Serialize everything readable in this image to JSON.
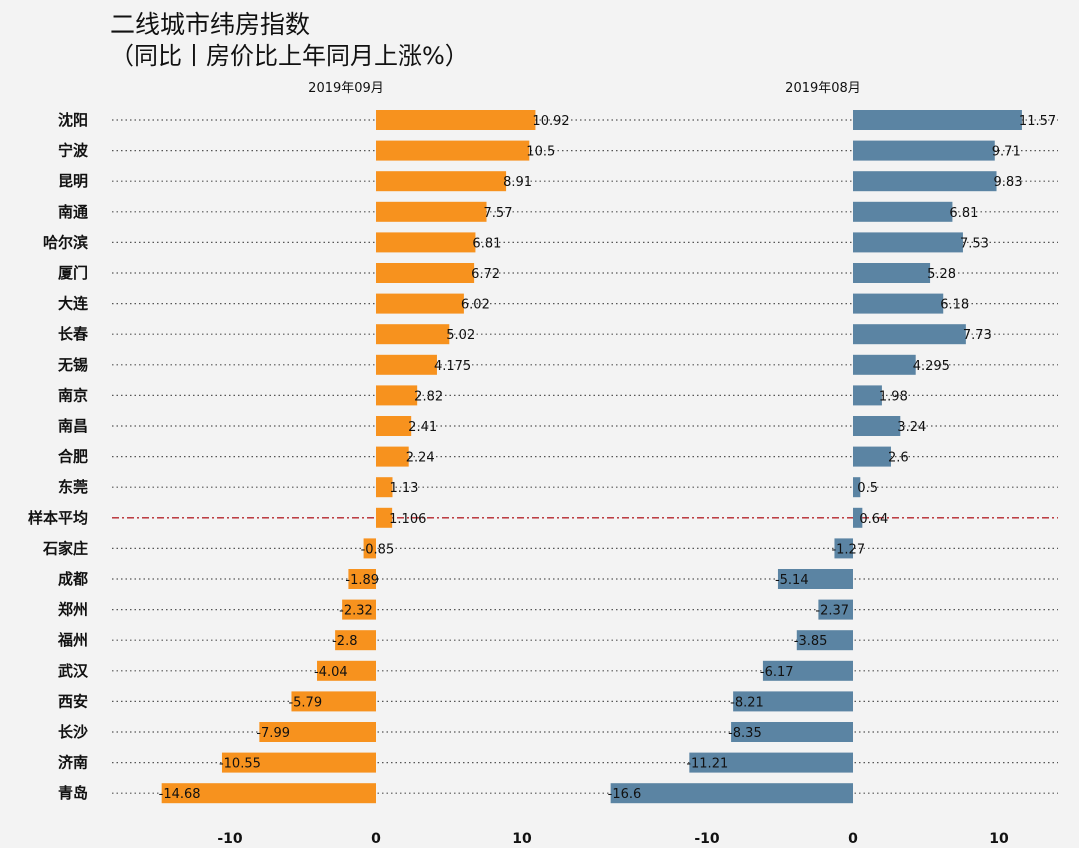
{
  "title": "二线城市纬房指数",
  "subtitle": "（同比丨房价比上年同月上涨%）",
  "colors": {
    "left": "#f7921e",
    "right": "#5b84a3",
    "avg_line": "#b5262b",
    "dots": "#555555"
  },
  "chart_data": {
    "type": "bar",
    "orientation": "horizontal",
    "categories": [
      "沈阳",
      "宁波",
      "昆明",
      "南通",
      "哈尔滨",
      "厦门",
      "大连",
      "长春",
      "无锡",
      "南京",
      "南昌",
      "合肥",
      "东莞",
      "样本平均",
      "石家庄",
      "成都",
      "郑州",
      "福州",
      "武汉",
      "西安",
      "长沙",
      "济南",
      "青岛"
    ],
    "highlight_category": "样本平均",
    "series": [
      {
        "name": "2019年09月",
        "values": [
          10.92,
          10.5,
          8.91,
          7.57,
          6.81,
          6.72,
          6.02,
          5.02,
          4.175,
          2.82,
          2.41,
          2.24,
          1.13,
          1.106,
          -0.85,
          -1.89,
          -2.32,
          -2.8,
          -4.04,
          -5.79,
          -7.99,
          -10.55,
          -14.68
        ],
        "labels": [
          "10.92",
          "10.5",
          "8.91",
          "7.57",
          "6.81",
          "6.72",
          "6.02",
          "5.02",
          "4.175",
          "2.82",
          "2.41",
          "2.24",
          "1.13",
          "1.106",
          "-0.85",
          "-1.89",
          "-2.32",
          "-2.8",
          "-4.04",
          "-5.79",
          "-7.99",
          "-10.55",
          "-14.68"
        ]
      },
      {
        "name": "2019年08月",
        "values": [
          11.57,
          9.71,
          9.83,
          6.81,
          7.53,
          5.28,
          6.18,
          7.73,
          4.295,
          1.98,
          3.24,
          2.6,
          0.5,
          0.64,
          -1.27,
          -5.14,
          -2.37,
          -3.85,
          -6.17,
          -8.21,
          -8.35,
          -11.21,
          -16.6
        ],
        "labels": [
          "11.57",
          "9.71",
          "9.83",
          "6.81",
          "7.53",
          "5.28",
          "6.18",
          "7.73",
          "4.295",
          "1.98",
          "3.24",
          "2.6",
          "0.5",
          "0.64",
          "-1.27",
          "-5.14",
          "-2.37",
          "-3.85",
          "-6.17",
          "-8.21",
          "-8.35",
          "-11.21",
          "-16.6"
        ]
      }
    ],
    "xticks": [
      -10,
      0,
      10
    ],
    "xtick_labels": [
      "-10",
      "0",
      "10"
    ],
    "xlim": [
      -16.5,
      14.5
    ],
    "grid": false,
    "legend": "none"
  }
}
